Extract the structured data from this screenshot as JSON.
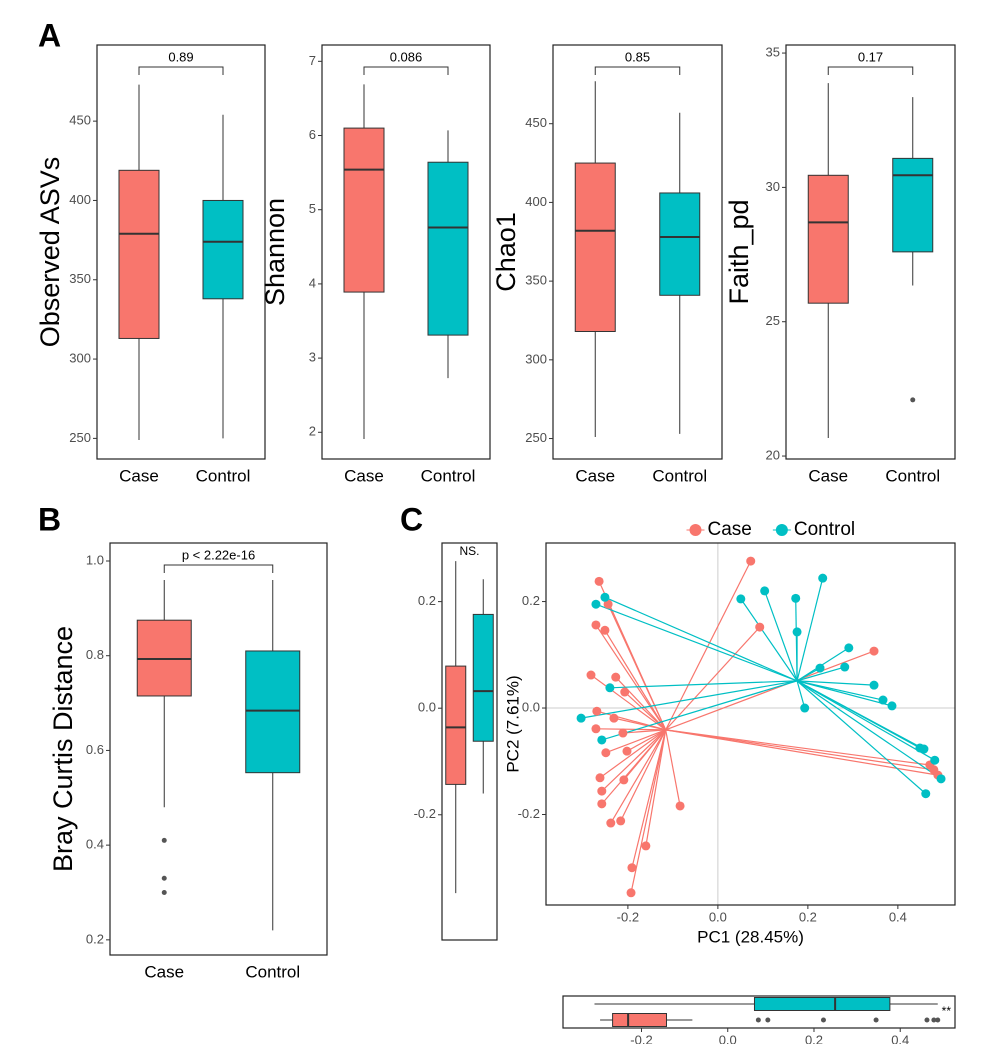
{
  "chart_data": [
    {
      "type": "box",
      "panel": "A",
      "ylabel": "Observed ASVs",
      "annotation": "0.89",
      "ylim": [
        237,
        498
      ],
      "yticks": [
        250,
        300,
        350,
        400,
        450
      ],
      "boxes": [
        {
          "name": "Case",
          "color": "#F8766D",
          "low": 249,
          "q1": 313,
          "median": 379,
          "q3": 419,
          "high": 473,
          "outliers": []
        },
        {
          "name": "Control",
          "color": "#00BFC4",
          "low": 250,
          "q1": 338,
          "median": 374,
          "q3": 400,
          "high": 454,
          "outliers": []
        }
      ]
    },
    {
      "type": "box",
      "ylabel": "Shannon",
      "annotation": "0.086",
      "ylim": [
        1.64,
        7.22
      ],
      "yticks": [
        2,
        3,
        4,
        5,
        6,
        7
      ],
      "boxes": [
        {
          "name": "Case",
          "color": "#F8766D",
          "low": 1.91,
          "q1": 3.89,
          "median": 5.54,
          "q3": 6.1,
          "high": 6.69,
          "outliers": []
        },
        {
          "name": "Control",
          "color": "#00BFC4",
          "low": 2.73,
          "q1": 3.31,
          "median": 4.76,
          "q3": 5.64,
          "high": 6.07,
          "outliers": []
        }
      ]
    },
    {
      "type": "box",
      "ylabel": "Chao1",
      "annotation": "0.85",
      "ylim": [
        237,
        500
      ],
      "yticks": [
        250,
        300,
        350,
        400,
        450
      ],
      "boxes": [
        {
          "name": "Case",
          "color": "#F8766D",
          "low": 251,
          "q1": 318,
          "median": 382,
          "q3": 425,
          "high": 477,
          "outliers": []
        },
        {
          "name": "Control",
          "color": "#00BFC4",
          "low": 253,
          "q1": 341,
          "median": 378,
          "q3": 406,
          "high": 457,
          "outliers": []
        }
      ]
    },
    {
      "type": "box",
      "ylabel": "Faith_pd",
      "annotation": "0.17",
      "ylim": [
        19.89,
        35.3
      ],
      "yticks": [
        20,
        25,
        30,
        35
      ],
      "boxes": [
        {
          "name": "Case",
          "color": "#F8766D",
          "low": 20.67,
          "q1": 25.69,
          "median": 28.7,
          "q3": 30.45,
          "high": 33.88,
          "outliers": []
        },
        {
          "name": "Control",
          "color": "#00BFC4",
          "low": 26.35,
          "q1": 27.6,
          "median": 30.45,
          "q3": 31.08,
          "high": 33.36,
          "outliers": [
            22.09
          ]
        }
      ]
    },
    {
      "type": "box",
      "panel": "B",
      "ylabel": "Bray Curtis Distance",
      "annotation": "p < 2.22e-16",
      "ylim": [
        0.168,
        1.038
      ],
      "yticks": [
        0.2,
        0.4,
        0.6,
        0.8,
        {
          "value": 1,
          "label": "1.0"
        }
      ],
      "boxes": [
        {
          "name": "Case",
          "color": "#F8766D",
          "low": 0.48,
          "q1": 0.715,
          "median": 0.793,
          "q3": 0.875,
          "high": 0.96,
          "outliers": [
            0.41,
            0.33,
            0.3
          ]
        },
        {
          "name": "Control",
          "color": "#00BFC4",
          "low": 0.22,
          "q1": 0.553,
          "median": 0.684,
          "q3": 0.81,
          "high": 0.96,
          "outliers": []
        }
      ]
    },
    {
      "type": "box",
      "panel": "C",
      "annotation": "NS.",
      "ylim": [
        -0.435,
        0.31
      ],
      "yticks": [
        -0.2,
        {
          "value": 0,
          "label": "0.0"
        },
        0.2
      ],
      "boxes": [
        {
          "color": "#F8766D",
          "low": -0.347,
          "q1": -0.143,
          "median": -0.036,
          "q3": 0.079,
          "high": 0.276,
          "outliers": []
        },
        {
          "color": "#00BFC4",
          "low": -0.16,
          "q1": -0.062,
          "median": 0.032,
          "q3": 0.176,
          "high": 0.242,
          "outliers": []
        }
      ]
    },
    {
      "type": "scatter",
      "xlabel": "PC1 (28.45%)",
      "ylabel": "PC2 (7.61%)",
      "legend": "top",
      "xlim": [
        -0.382,
        0.527
      ],
      "ylim": [
        -0.37,
        0.31
      ],
      "xticks": [
        -0.2,
        {
          "value": 0,
          "label": "0.0"
        },
        0.2,
        0.4
      ],
      "yticks": [
        -0.2,
        {
          "value": 0,
          "label": "0.0"
        },
        0.2
      ],
      "series": [
        {
          "name": "Case",
          "color": "#F8766D",
          "centroid": [
            -0.116,
            -0.041
          ],
          "x": [
            0.073,
            -0.264,
            -0.244,
            -0.271,
            -0.251,
            0.093,
            0.347,
            -0.282,
            -0.227,
            -0.207,
            -0.269,
            -0.231,
            -0.271,
            -0.211,
            -0.249,
            -0.202,
            -0.262,
            -0.209,
            -0.258,
            -0.258,
            -0.084,
            -0.216,
            -0.238,
            -0.16,
            -0.191,
            -0.193,
            0.471,
            0.48,
            0.489
          ],
          "y": [
            0.276,
            0.238,
            0.195,
            0.156,
            0.146,
            0.152,
            0.107,
            0.062,
            0.058,
            0.03,
            -0.006,
            -0.019,
            -0.039,
            -0.047,
            -0.084,
            -0.081,
            -0.131,
            -0.135,
            -0.156,
            -0.18,
            -0.184,
            -0.212,
            -0.216,
            -0.259,
            -0.3,
            -0.347,
            -0.107,
            -0.116,
            -0.126
          ]
        },
        {
          "name": "Control",
          "color": "#00BFC4",
          "centroid": [
            0.176,
            0.051
          ],
          "x": [
            -0.271,
            -0.251,
            0.051,
            0.104,
            0.173,
            0.233,
            0.176,
            0.291,
            0.227,
            0.282,
            0.347,
            0.367,
            0.387,
            0.193,
            -0.24,
            -0.304,
            -0.258,
            0.449,
            0.458,
            0.482,
            0.496,
            0.462
          ],
          "y": [
            0.195,
            0.208,
            0.205,
            0.22,
            0.206,
            0.244,
            0.143,
            0.113,
            0.075,
            0.077,
            0.043,
            0.015,
            0.004,
            0,
            0.038,
            -0.019,
            -0.06,
            -0.075,
            -0.077,
            -0.098,
            -0.133,
            -0.161
          ]
        }
      ]
    },
    {
      "type": "box",
      "orientation": "horizontal",
      "annotation": "**",
      "xlim": [
        -0.382,
        0.527
      ],
      "xticks": [
        -0.2,
        {
          "value": 0,
          "label": "0.0"
        },
        0.2,
        0.4
      ],
      "boxes": [
        {
          "color": "#F8766D",
          "low": -0.296,
          "q1": -0.267,
          "median": -0.231,
          "q3": -0.142,
          "high": -0.082,
          "outliers": [
            0.071,
            0.093,
            0.222,
            0.344,
            0.462,
            0.478,
            0.487
          ]
        },
        {
          "color": "#00BFC4",
          "low": -0.309,
          "q1": 0.062,
          "median": 0.249,
          "q3": 0.376,
          "high": 0.487,
          "outliers": []
        }
      ]
    }
  ]
}
